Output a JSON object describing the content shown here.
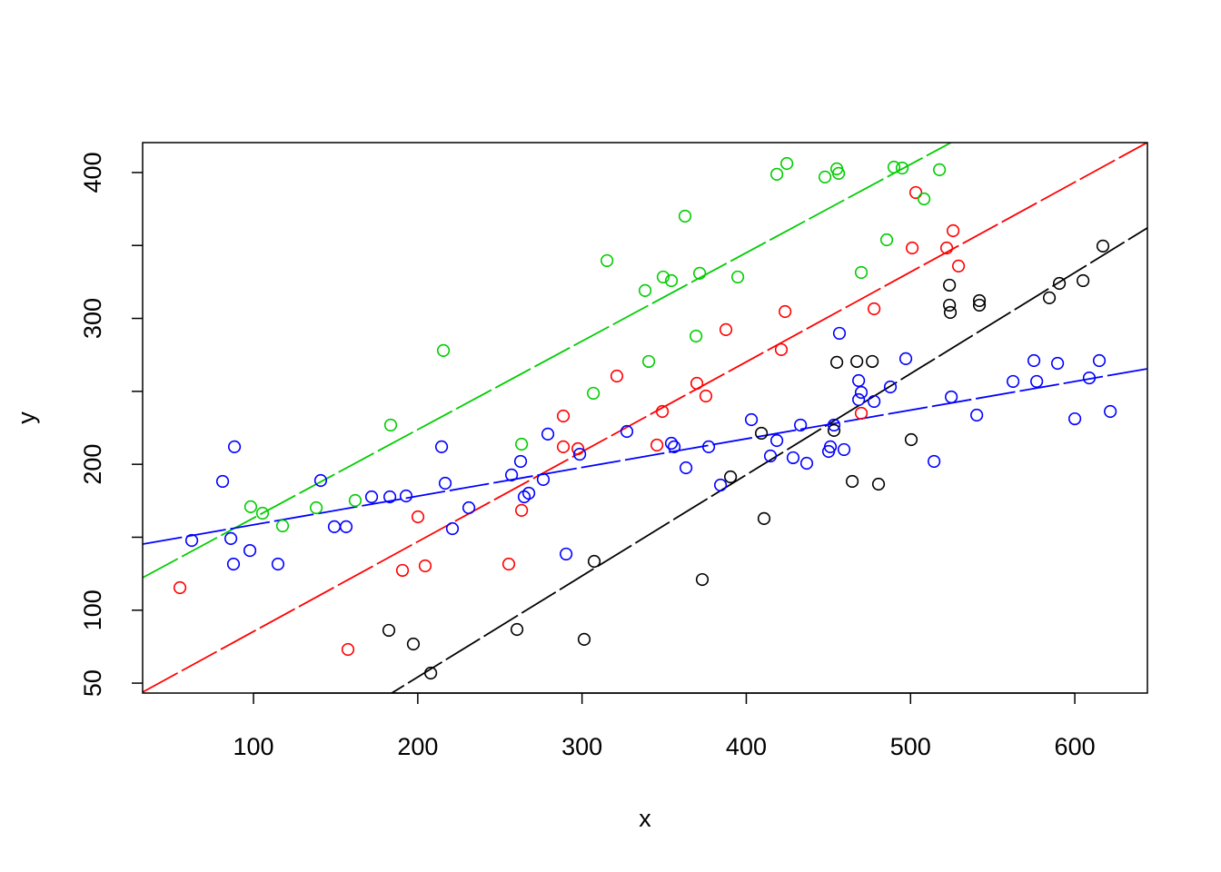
{
  "chart_data": {
    "type": "scatter",
    "title": "",
    "xlabel": "x",
    "ylabel": "y",
    "xlim": [
      32.5,
      644.2
    ],
    "ylim": [
      43.2,
      420.5
    ],
    "x_ticks": [
      100,
      200,
      300,
      400,
      500,
      600
    ],
    "y_ticks": [
      50,
      100,
      150,
      200,
      250,
      300,
      350,
      400
    ],
    "y_tick_labels": {
      "50": "50",
      "100": "100",
      "200": "200",
      "300": "300",
      "400": "400"
    },
    "grid": false,
    "series": [
      {
        "color": "#000000",
        "fit": {
          "slope": 0.693,
          "intercept": -84.4
        },
        "points": [
          [
            182.4,
            86.2
          ],
          [
            197.3,
            76.8
          ],
          [
            207.9,
            56.9
          ],
          [
            260.4,
            86.8
          ],
          [
            301.3,
            80.0
          ],
          [
            307.4,
            133.5
          ],
          [
            373.2,
            121.0
          ],
          [
            390.4,
            191.4
          ],
          [
            409.2,
            221.3
          ],
          [
            410.8,
            162.8
          ],
          [
            453.4,
            223.2
          ],
          [
            455.1,
            269.9
          ],
          [
            464.5,
            188.3
          ],
          [
            467.3,
            270.5
          ],
          [
            476.7,
            270.5
          ],
          [
            480.5,
            186.4
          ],
          [
            500.4,
            216.9
          ],
          [
            523.7,
            322.8
          ],
          [
            523.7,
            309.1
          ],
          [
            524.2,
            304.1
          ],
          [
            541.9,
            312.2
          ],
          [
            541.9,
            309.1
          ],
          [
            584.5,
            314.1
          ],
          [
            590.6,
            324.0
          ],
          [
            605.0,
            325.9
          ],
          [
            617.1,
            349.6
          ]
        ]
      },
      {
        "color": "#ff0000",
        "fit": {
          "slope": 0.616,
          "intercept": 23.8
        },
        "points": [
          [
            55.2,
            115.4
          ],
          [
            157.5,
            73.1
          ],
          [
            190.7,
            127.3
          ],
          [
            200.1,
            164.0
          ],
          [
            204.5,
            130.4
          ],
          [
            255.4,
            131.6
          ],
          [
            263.2,
            168.4
          ],
          [
            288.6,
            233.1
          ],
          [
            288.6,
            212.0
          ],
          [
            297.5,
            210.7
          ],
          [
            321.2,
            260.5
          ],
          [
            345.6,
            213.2
          ],
          [
            348.9,
            236.2
          ],
          [
            369.9,
            255.5
          ],
          [
            375.4,
            246.8
          ],
          [
            387.6,
            292.3
          ],
          [
            421.3,
            278.6
          ],
          [
            423.6,
            304.7
          ],
          [
            470.0,
            235.0
          ],
          [
            477.8,
            306.6
          ],
          [
            501.0,
            348.3
          ],
          [
            503.2,
            386.3
          ],
          [
            522.0,
            348.3
          ],
          [
            525.9,
            360.1
          ],
          [
            529.2,
            335.9
          ]
        ]
      },
      {
        "color": "#00cd00",
        "fit": {
          "slope": 0.606,
          "intercept": 102.6
        },
        "points": [
          [
            98.3,
            170.9
          ],
          [
            105.5,
            166.5
          ],
          [
            117.7,
            157.8
          ],
          [
            138.2,
            170.2
          ],
          [
            161.9,
            175.2
          ],
          [
            183.5,
            226.9
          ],
          [
            215.6,
            278.0
          ],
          [
            263.2,
            213.8
          ],
          [
            306.9,
            248.7
          ],
          [
            315.2,
            339.6
          ],
          [
            338.4,
            319.1
          ],
          [
            340.6,
            270.5
          ],
          [
            349.4,
            328.4
          ],
          [
            354.4,
            325.9
          ],
          [
            362.7,
            370.1
          ],
          [
            369.4,
            287.9
          ],
          [
            371.6,
            330.9
          ],
          [
            394.8,
            328.4
          ],
          [
            418.6,
            398.8
          ],
          [
            424.7,
            406.2
          ],
          [
            447.9,
            396.9
          ],
          [
            455.1,
            402.5
          ],
          [
            456.2,
            399.4
          ],
          [
            470.0,
            331.5
          ],
          [
            485.5,
            353.9
          ],
          [
            489.9,
            403.7
          ],
          [
            494.9,
            403.1
          ],
          [
            508.2,
            381.9
          ],
          [
            517.6,
            401.9
          ]
        ]
      },
      {
        "color": "#0000ff",
        "fit": {
          "slope": 0.1965,
          "intercept": 138.9
        },
        "points": [
          [
            62.4,
            147.8
          ],
          [
            81.2,
            188.3
          ],
          [
            86.2,
            149.1
          ],
          [
            87.8,
            131.6
          ],
          [
            88.4,
            212.0
          ],
          [
            97.8,
            140.9
          ],
          [
            114.9,
            131.6
          ],
          [
            140.9,
            188.9
          ],
          [
            149.2,
            157.2
          ],
          [
            156.4,
            157.2
          ],
          [
            171.9,
            177.7
          ],
          [
            183.0,
            177.7
          ],
          [
            192.9,
            178.3
          ],
          [
            214.5,
            212.0
          ],
          [
            216.7,
            187.0
          ],
          [
            221.1,
            155.9
          ],
          [
            231.1,
            170.2
          ],
          [
            257.1,
            192.7
          ],
          [
            262.6,
            202.0
          ],
          [
            264.8,
            177.7
          ],
          [
            267.6,
            180.2
          ],
          [
            276.4,
            189.6
          ],
          [
            279.2,
            220.7
          ],
          [
            290.3,
            138.5
          ],
          [
            298.6,
            206.9
          ],
          [
            327.3,
            222.5
          ],
          [
            354.4,
            214.4
          ],
          [
            356.1,
            212.0
          ],
          [
            363.3,
            197.6
          ],
          [
            377.1,
            212.0
          ],
          [
            384.3,
            185.8
          ],
          [
            403.1,
            230.6
          ],
          [
            414.7,
            205.7
          ],
          [
            418.6,
            216.3
          ],
          [
            428.5,
            204.5
          ],
          [
            433.0,
            226.9
          ],
          [
            436.8,
            200.7
          ],
          [
            450.1,
            208.8
          ],
          [
            451.2,
            212.0
          ],
          [
            453.4,
            226.9
          ],
          [
            456.7,
            289.8
          ],
          [
            459.5,
            210.1
          ],
          [
            468.4,
            257.4
          ],
          [
            468.4,
            244.3
          ],
          [
            470.0,
            249.3
          ],
          [
            477.8,
            243.1
          ],
          [
            487.7,
            253.0
          ],
          [
            497.1,
            272.4
          ],
          [
            514.3,
            202.0
          ],
          [
            524.8,
            246.2
          ],
          [
            540.3,
            233.7
          ],
          [
            562.4,
            256.8
          ],
          [
            575.1,
            271.1
          ],
          [
            576.8,
            256.8
          ],
          [
            589.5,
            269.2
          ],
          [
            600.0,
            231.2
          ],
          [
            608.8,
            259.2
          ],
          [
            614.9,
            271.1
          ],
          [
            621.6,
            236.2
          ]
        ]
      }
    ]
  }
}
